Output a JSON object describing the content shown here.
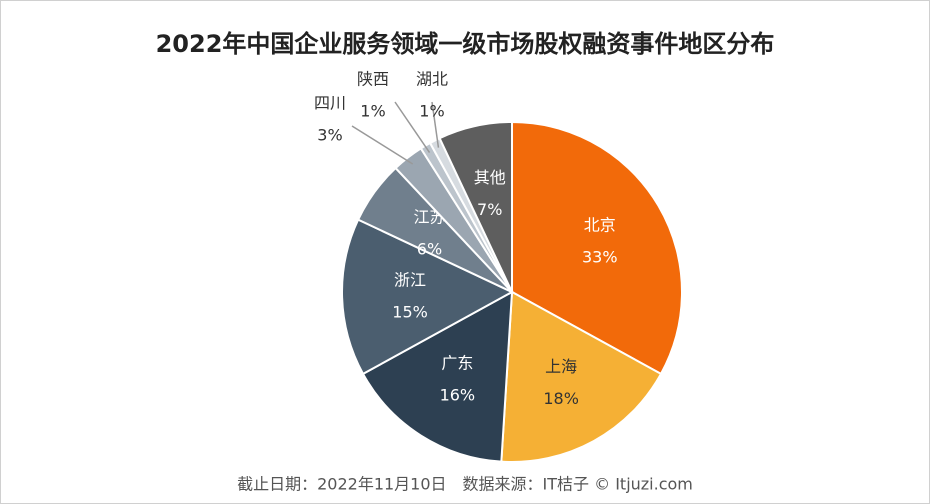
{
  "chart_data": {
    "type": "pie",
    "title": "2022年中国企业服务领域一级市场股权融资事件地区分布",
    "categories": [
      "北京",
      "上海",
      "广东",
      "浙江",
      "江苏",
      "四川",
      "陕西",
      "湖北",
      "其他"
    ],
    "values": [
      33,
      18,
      16,
      15,
      6,
      3,
      1,
      1,
      7
    ],
    "value_labels": [
      "33%",
      "18%",
      "16%",
      "15%",
      "6%",
      "3%",
      "1%",
      "1%",
      "7%"
    ],
    "colors": [
      "#f26a0a",
      "#f5b035",
      "#2d4052",
      "#4b5e6f",
      "#707f8d",
      "#9ba6b1",
      "#bcc4cc",
      "#d6dbe0",
      "#5e5e5e"
    ],
    "source": "截止日期：2022年11月10日　数据来源：IT桔子 © Itjuzi.com"
  }
}
